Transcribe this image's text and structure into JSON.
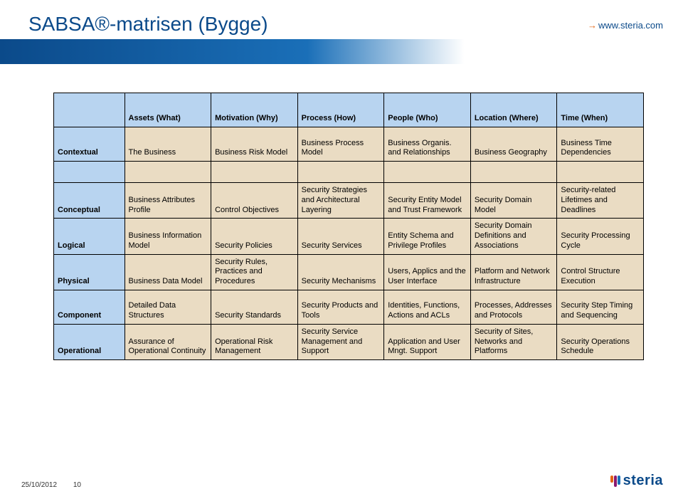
{
  "title": "SABSA®-matrisen (Bygge)",
  "site": "www.steria.com",
  "footer_date": "25/10/2012",
  "footer_page": "10",
  "logo_text": "steria",
  "colors": {
    "header_bg_blue": "#b8d4f0",
    "cell_blue": "#b8d4f0",
    "cell_tan": "#eadcc3",
    "cell_header_blank": "#b8d4f0"
  },
  "table": {
    "columns": [
      "",
      "Assets (What)",
      "Motivation (Why)",
      "Process (How)",
      "People (Who)",
      "Location (Where)",
      "Time (When)"
    ],
    "rows": [
      {
        "label": "Contextual",
        "color_scheme": "tan",
        "cells": [
          "The Business",
          "Business Risk Model",
          "Business Process Model",
          "Business Organis. and Relationships",
          "Business Geography",
          "Business Time Dependencies"
        ]
      },
      {
        "label": "Conceptual",
        "color_scheme": "tan",
        "cells": [
          "Business Attributes Profile",
          "Control Objectives",
          "Security Strategies and Architectural Layering",
          "Security Entity Model and Trust Framework",
          "Security Domain Model",
          "Security-related Lifetimes and Deadlines"
        ]
      },
      {
        "label": "Logical",
        "color_scheme": "tan",
        "cells": [
          "Business Information Model",
          "Security Policies",
          "Security Services",
          "Entity Schema and Privilege Profiles",
          "Security Domain Definitions and Associations",
          "Security Processing Cycle"
        ]
      },
      {
        "label": "Physical",
        "color_scheme": "tan",
        "cells": [
          "Business Data Model",
          "Security Rules, Practices and Procedures",
          "Security Mechanisms",
          "Users, Applics and the User Interface",
          "Platform and Network Infrastructure",
          "Control Structure Execution"
        ]
      },
      {
        "label": "Component",
        "color_scheme": "tan",
        "cells": [
          "Detailed Data Structures",
          "Security Standards",
          "Security Products and Tools",
          "Identities, Functions, Actions and ACLs",
          "Processes, Addresses and Protocols",
          "Security Step Timing and Sequencing"
        ]
      },
      {
        "label": "Operational",
        "color_scheme": "tan",
        "cells": [
          "Assurance of Operational Continuity",
          "Operational Risk Management",
          "Security Service Management and Support",
          "Application and User Mngt. Support",
          "Security of Sites, Networks and Platforms",
          "Security Operations Schedule"
        ]
      }
    ]
  }
}
